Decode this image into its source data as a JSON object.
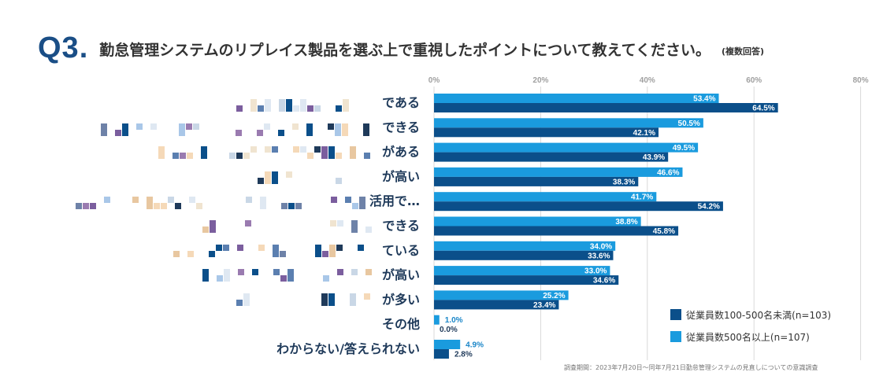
{
  "header": {
    "qno": "Q3.",
    "title": "勤怠管理システムのリプレイス製品を選ぶ上で重視したポイントについて教えてください。",
    "note": "(複数回答)"
  },
  "footer": {
    "source": "調査期間：2023年7月20日〜同年7月21日勤怠管理システムの見直しについての意識調査"
  },
  "colors": {
    "series_large": "#1a9bde",
    "series_small": "#0b4f8a",
    "label_large": "#1a86c8",
    "label_small": "#0b4f8a",
    "grid": "#d9d9d9"
  },
  "chart_data": {
    "type": "bar",
    "orientation": "horizontal",
    "categories": [
      "である",
      "できる",
      "がある",
      "が高い",
      "活用で…",
      "できる",
      "ている",
      "が高い",
      "が多い",
      "その他",
      "わからない/答えられない"
    ],
    "series": [
      {
        "name": "従業員数500名以上(n=107)",
        "values": [
          53.4,
          50.5,
          49.5,
          46.6,
          41.7,
          38.8,
          34.0,
          33.0,
          25.2,
          1.0,
          4.9
        ]
      },
      {
        "name": "従業員数100-500名未満(n=103)",
        "values": [
          64.5,
          42.1,
          43.9,
          38.3,
          54.2,
          45.8,
          33.6,
          34.6,
          23.4,
          0.0,
          2.8
        ]
      }
    ],
    "value_labels": [
      [
        "53.4%",
        "50.5%",
        "49.5%",
        "46.6%",
        "41.7%",
        "38.8%",
        "34.0%",
        "33.0%",
        "25.2%",
        "1.0%",
        "4.9%"
      ],
      [
        "64.5%",
        "42.1%",
        "43.9%",
        "38.3%",
        "54.2%",
        "45.8%",
        "33.6%",
        "34.6%",
        "23.4%",
        "0.0%",
        "2.8%"
      ]
    ],
    "xticks": [
      0,
      20,
      40,
      60,
      80
    ],
    "xtick_labels": [
      "0%",
      "20%",
      "40%",
      "60%",
      "80%"
    ],
    "xlim": [
      0,
      80
    ],
    "grid": true,
    "legend_position": "bottom-right",
    "legend": [
      {
        "label": "従業員数100-500名未満(n=103)",
        "series": 1
      },
      {
        "label": "従業員数500名以上(n=107)",
        "series": 0
      }
    ]
  }
}
